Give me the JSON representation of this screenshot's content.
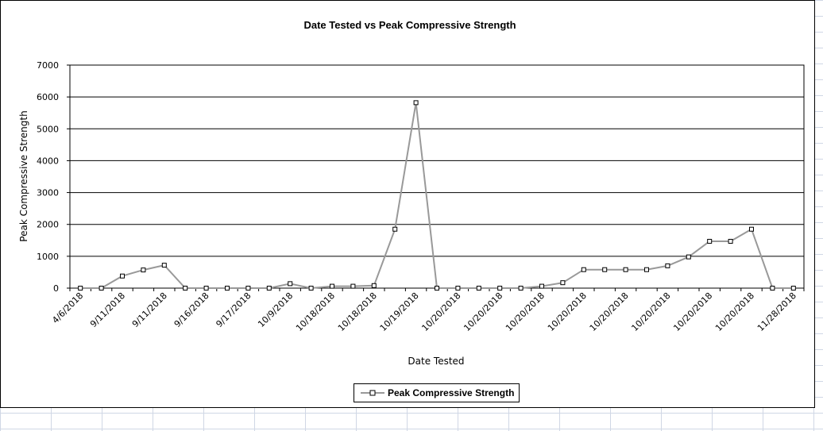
{
  "chart_data": {
    "type": "line",
    "title": "Date Tested vs Peak Compressive Strength",
    "xlabel": "Date Tested",
    "ylabel": "Peak Compressive Strength",
    "ylim": [
      0,
      7000
    ],
    "yticks": [
      0,
      1000,
      2000,
      3000,
      4000,
      5000,
      6000,
      7000
    ],
    "grid": "horizontal",
    "legend": "bottom",
    "x_tick_labels": [
      "4/6/2018",
      "9/11/2018",
      "9/11/2018",
      "9/16/2018",
      "9/17/2018",
      "10/9/2018",
      "10/18/2018",
      "10/18/2018",
      "10/19/2018",
      "10/20/2018",
      "10/20/2018",
      "10/20/2018",
      "10/20/2018",
      "10/20/2018",
      "10/20/2018",
      "10/20/2018",
      "10/20/2018",
      "11/28/2018"
    ],
    "series": [
      {
        "name": "Peak Compressive Strength",
        "color": "#999999",
        "marker": "square",
        "values": [
          0,
          0,
          380,
          570,
          720,
          0,
          0,
          0,
          0,
          0,
          140,
          0,
          60,
          60,
          80,
          1850,
          5820,
          0,
          0,
          0,
          0,
          0,
          60,
          170,
          580,
          580,
          580,
          580,
          700,
          980,
          1470,
          1470,
          1850,
          0,
          0
        ]
      }
    ]
  }
}
